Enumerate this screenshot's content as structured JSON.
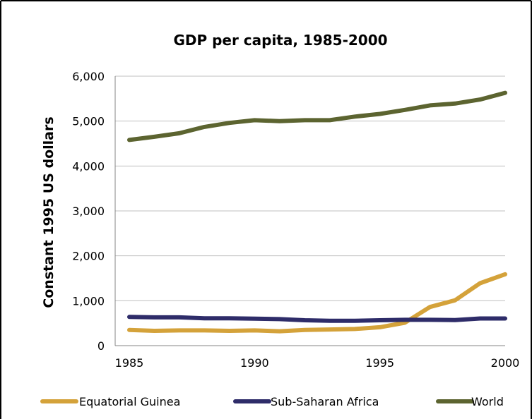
{
  "chart_data": {
    "type": "line",
    "title": "GDP per capita, 1985-2000",
    "xlabel": "",
    "ylabel": "Constant 1995 US dollars",
    "x": [
      1985,
      1986,
      1987,
      1988,
      1989,
      1990,
      1991,
      1992,
      1993,
      1994,
      1995,
      1996,
      1997,
      1998,
      1999,
      2000
    ],
    "x_ticks": [
      1985,
      1990,
      1995,
      2000
    ],
    "x_tick_labels": [
      "1985",
      "1990",
      "1995",
      "2000"
    ],
    "ylim": [
      0,
      6000
    ],
    "y_ticks": [
      0,
      1000,
      2000,
      3000,
      4000,
      5000,
      6000
    ],
    "y_tick_labels": [
      "0",
      "1,000",
      "2,000",
      "3,000",
      "4,000",
      "5,000",
      "6,000"
    ],
    "grid": true,
    "legend_position": "bottom",
    "series": [
      {
        "name": "Equatorial Guinea",
        "color": "#D4A23A",
        "values": [
          350,
          330,
          340,
          340,
          330,
          340,
          320,
          350,
          360,
          370,
          410,
          510,
          860,
          1010,
          1390,
          1590
        ]
      },
      {
        "name": "Sub-Saharan Africa",
        "color": "#2E2C69",
        "values": [
          640,
          630,
          630,
          610,
          610,
          600,
          590,
          565,
          555,
          555,
          565,
          575,
          575,
          570,
          605,
          605
        ]
      },
      {
        "name": "World",
        "color": "#5C6430",
        "values": [
          4580,
          4650,
          4730,
          4870,
          4960,
          5020,
          5000,
          5020,
          5020,
          5100,
          5160,
          5250,
          5350,
          5390,
          5480,
          5630
        ]
      }
    ]
  }
}
